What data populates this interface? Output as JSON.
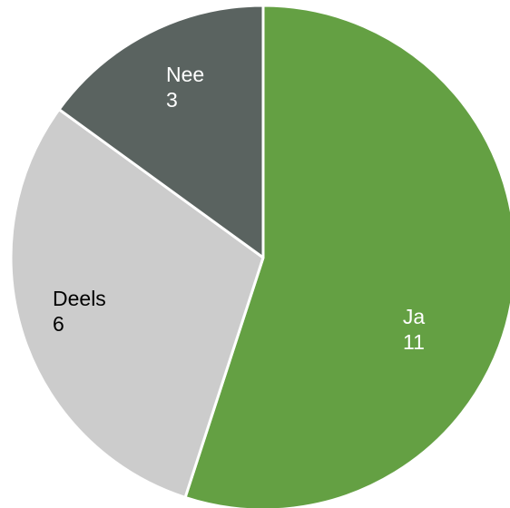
{
  "chart_data": {
    "type": "pie",
    "title": "",
    "legend": "none",
    "slices": [
      {
        "label": "Ja",
        "value": 11,
        "color": "#64a043",
        "label_color": "#ffffff"
      },
      {
        "label": "Deels",
        "value": 6,
        "color": "#cccccc",
        "label_color": "#000000"
      },
      {
        "label": "Nee",
        "value": 3,
        "color": "#5a6360",
        "label_color": "#ffffff"
      }
    ]
  }
}
